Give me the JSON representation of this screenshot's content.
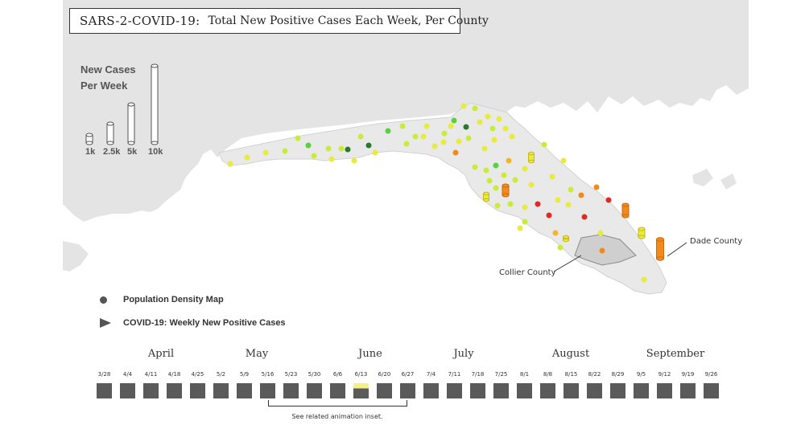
{
  "title": {
    "lead": "SARS-2-COVID-19:",
    "main": "Total New Positive Cases Each Week, Per County"
  },
  "legend": {
    "heading_line1": "New Cases",
    "heading_line2": "Per Week",
    "scale": [
      {
        "label": "1k",
        "value": 1000
      },
      {
        "label": "2.5k",
        "value": 2500
      },
      {
        "label": "5k",
        "value": 5000
      },
      {
        "label": "10k",
        "value": 10000
      }
    ]
  },
  "key": {
    "density": "Population Density Map",
    "cases": "COVID-19: Weekly New Positive Cases"
  },
  "counties": {
    "dade": "Dade County",
    "collier": "Collier County"
  },
  "colors": {
    "land": "#e4e4e4",
    "water": "#ffffff",
    "high": "#e02a22",
    "mid_high": "#f28a1c",
    "mid": "#f3b62a",
    "low_mid": "#e7ec3f",
    "low": "#c9ec3a",
    "lowest": "#58d23f",
    "dark": "#2a7a2a",
    "week_box": "#5a5a5a",
    "week_highlight": "#f4f08a"
  },
  "timeline": {
    "months": [
      "April",
      "May",
      "June",
      "July",
      "August",
      "September"
    ],
    "weeks": [
      "3/28",
      "4/4",
      "4/11",
      "4/18",
      "4/25",
      "5/2",
      "5/9",
      "5/16",
      "5/23",
      "5/30",
      "6/6",
      "6/13",
      "6/20",
      "6/27",
      "7/4",
      "7/11",
      "7/18",
      "7/25",
      "8/1",
      "8/8",
      "8/15",
      "8/22",
      "8/29",
      "9/5",
      "9/12",
      "9/19",
      "9/26"
    ],
    "selected_week": "6/13",
    "note": "See related animation inset."
  }
}
